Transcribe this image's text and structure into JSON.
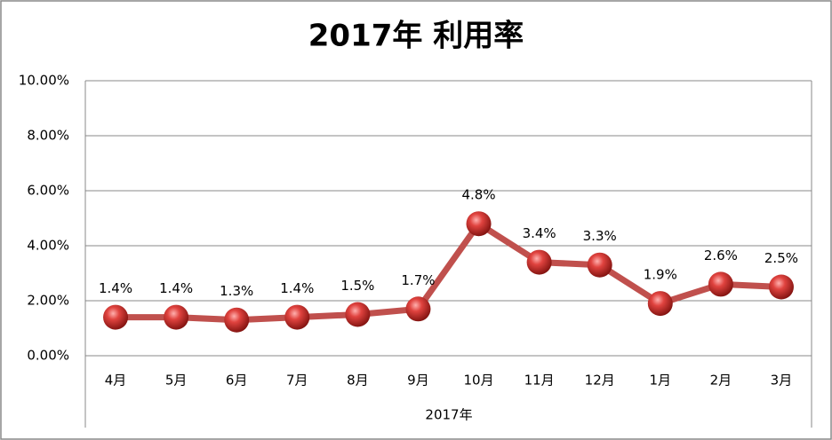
{
  "chart_data": {
    "type": "line",
    "title": "2017年 利用率",
    "x_label": "2017年",
    "categories": [
      "4月",
      "5月",
      "6月",
      "7月",
      "8月",
      "9月",
      "10月",
      "11月",
      "12月",
      "1月",
      "2月",
      "3月"
    ],
    "values": [
      1.4,
      1.4,
      1.3,
      1.4,
      1.5,
      1.7,
      4.8,
      3.4,
      3.3,
      1.9,
      2.6,
      2.5
    ],
    "value_labels": [
      "1.4%",
      "1.4%",
      "1.3%",
      "1.4%",
      "1.5%",
      "1.7%",
      "4.8%",
      "3.4%",
      "3.3%",
      "1.9%",
      "2.6%",
      "2.5%"
    ],
    "color": "#c0504d",
    "ylim": [
      0,
      10
    ],
    "yticks": [
      {
        "value": 0,
        "label": "0.00%"
      },
      {
        "value": 2,
        "label": "2.00%"
      },
      {
        "value": 4,
        "label": "4.00%"
      },
      {
        "value": 6,
        "label": "6.00%"
      },
      {
        "value": 8,
        "label": "8.00%"
      },
      {
        "value": 10,
        "label": "10.00%"
      }
    ],
    "grid": true
  }
}
